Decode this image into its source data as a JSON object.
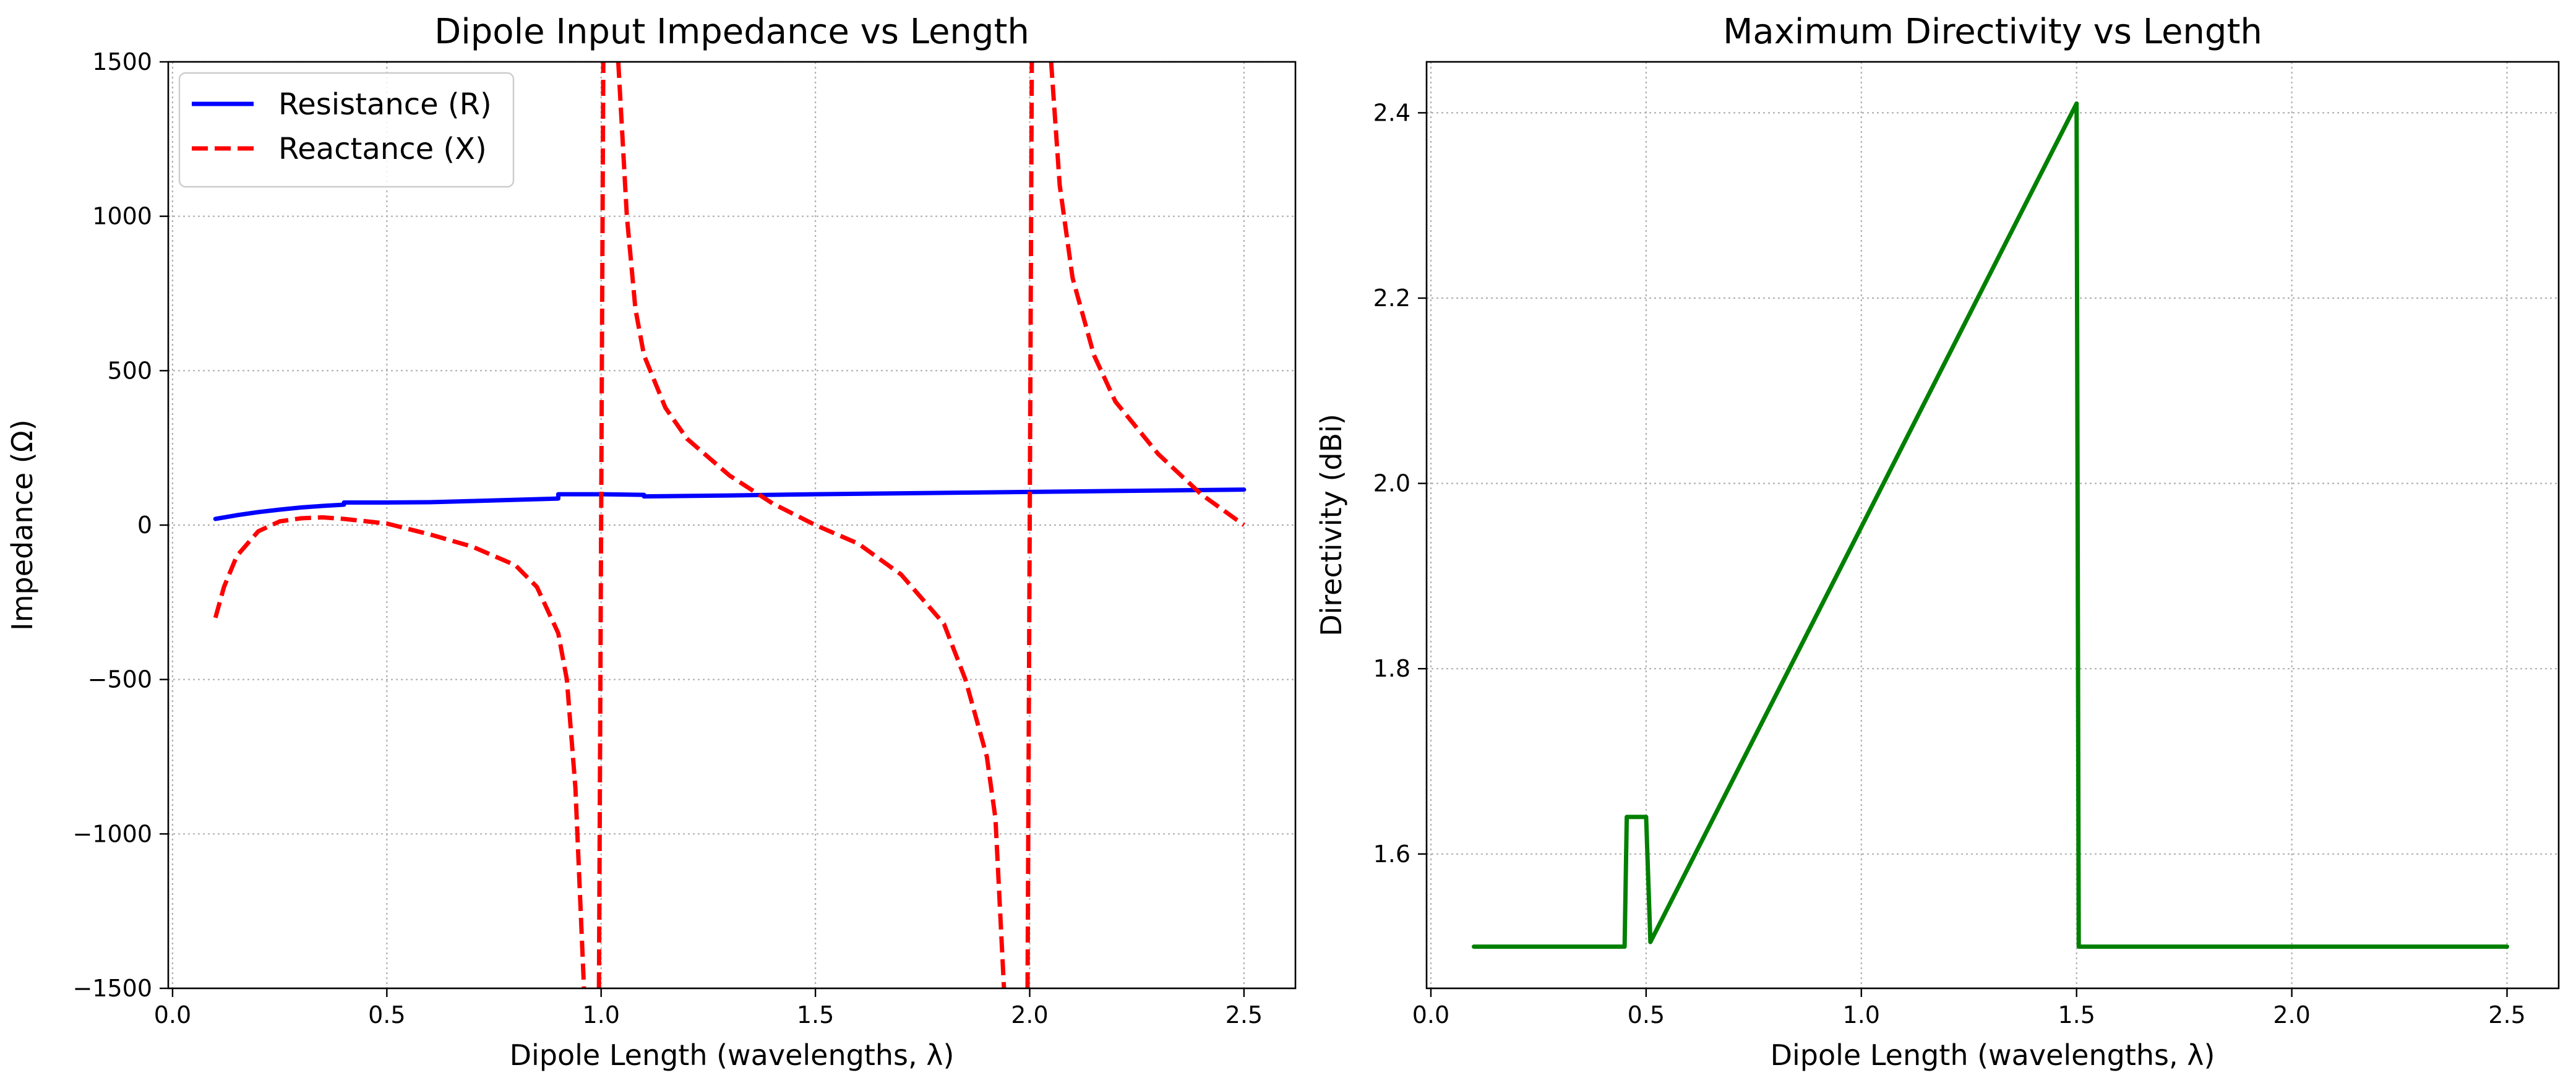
{
  "chart_data": [
    {
      "type": "line",
      "title": "Dipole Input Impedance vs Length",
      "xlabel": "Dipole Length (wavelengths, λ)",
      "ylabel": "Impedance (Ω)",
      "xlim": [
        -0.01,
        2.62
      ],
      "ylim": [
        -1500,
        1500
      ],
      "xticks": [
        0.0,
        0.5,
        1.0,
        1.5,
        2.0,
        2.5
      ],
      "xtick_labels": [
        "0.0",
        "0.5",
        "1.0",
        "1.5",
        "2.0",
        "2.5"
      ],
      "yticks": [
        -1500,
        -1000,
        -500,
        0,
        500,
        1000,
        1500
      ],
      "ytick_labels": [
        "−1500",
        "−1000",
        "−500",
        "0",
        "500",
        "1000",
        "1500"
      ],
      "grid": true,
      "legend": "upper-left",
      "series": [
        {
          "name": "Resistance (R)",
          "color": "#0000ff",
          "style": "solid",
          "segments": [
            [
              [
                0.1,
                20
              ],
              [
                0.15,
                32
              ],
              [
                0.2,
                42
              ],
              [
                0.25,
                50
              ],
              [
                0.3,
                57
              ],
              [
                0.35,
                62
              ],
              [
                0.4,
                66
              ],
              [
                0.4,
                73
              ],
              [
                0.5,
                73
              ],
              [
                0.6,
                74
              ],
              [
                0.7,
                78
              ],
              [
                0.8,
                82
              ],
              [
                0.9,
                86
              ],
              [
                0.9,
                100
              ],
              [
                1.0,
                100
              ],
              [
                1.1,
                98
              ],
              [
                1.1,
                93
              ],
              [
                1.3,
                96
              ],
              [
                1.5,
                100
              ],
              [
                1.7,
                103
              ],
              [
                1.9,
                106
              ],
              [
                2.1,
                109
              ],
              [
                2.3,
                112
              ],
              [
                2.5,
                115
              ]
            ]
          ]
        },
        {
          "name": "Reactance (X)",
          "color": "#ff0000",
          "style": "dashed",
          "segments": [
            [
              [
                0.1,
                -300
              ],
              [
                0.12,
                -200
              ],
              [
                0.15,
                -100
              ],
              [
                0.2,
                -20
              ],
              [
                0.25,
                12
              ],
              [
                0.3,
                22
              ],
              [
                0.35,
                25
              ],
              [
                0.4,
                20
              ],
              [
                0.5,
                5
              ],
              [
                0.6,
                -30
              ],
              [
                0.7,
                -70
              ],
              [
                0.8,
                -130
              ],
              [
                0.85,
                -200
              ],
              [
                0.9,
                -350
              ],
              [
                0.92,
                -500
              ],
              [
                0.94,
                -850
              ],
              [
                0.96,
                -1500
              ]
            ],
            [
              [
                0.995,
                -1500
              ],
              [
                1.0,
                0
              ],
              [
                1.005,
                1500
              ]
            ],
            [
              [
                1.04,
                1500
              ],
              [
                1.06,
                1000
              ],
              [
                1.08,
                700
              ],
              [
                1.1,
                550
              ],
              [
                1.15,
                380
              ],
              [
                1.2,
                280
              ],
              [
                1.3,
                160
              ],
              [
                1.4,
                70
              ],
              [
                1.5,
                0
              ],
              [
                1.6,
                -60
              ],
              [
                1.7,
                -160
              ],
              [
                1.8,
                -320
              ],
              [
                1.85,
                -500
              ],
              [
                1.9,
                -750
              ],
              [
                1.92,
                -950
              ],
              [
                1.94,
                -1500
              ]
            ],
            [
              [
                1.995,
                -1500
              ],
              [
                2.0,
                0
              ],
              [
                2.005,
                1500
              ]
            ],
            [
              [
                2.05,
                1500
              ],
              [
                2.07,
                1100
              ],
              [
                2.1,
                800
              ],
              [
                2.15,
                550
              ],
              [
                2.2,
                400
              ],
              [
                2.3,
                230
              ],
              [
                2.4,
                100
              ],
              [
                2.5,
                0
              ]
            ]
          ]
        }
      ]
    },
    {
      "type": "line",
      "title": "Maximum Directivity vs Length",
      "xlabel": "Dipole Length (wavelengths, λ)",
      "ylabel": "Directivity (dBi)",
      "xlim": [
        -0.01,
        2.62
      ],
      "ylim": [
        1.455,
        2.455
      ],
      "xticks": [
        0.0,
        0.5,
        1.0,
        1.5,
        2.0,
        2.5
      ],
      "xtick_labels": [
        "0.0",
        "0.5",
        "1.0",
        "1.5",
        "2.0",
        "2.5"
      ],
      "yticks": [
        1.6,
        1.8,
        2.0,
        2.2,
        2.4
      ],
      "ytick_labels": [
        "1.6",
        "1.8",
        "2.0",
        "2.2",
        "2.4"
      ],
      "grid": true,
      "series": [
        {
          "color": "#008000",
          "style": "solid",
          "segments": [
            [
              [
                0.1,
                1.5
              ],
              [
                0.45,
                1.5
              ],
              [
                0.455,
                1.64
              ],
              [
                0.5,
                1.64
              ],
              [
                0.51,
                1.505
              ],
              [
                1.5,
                2.41
              ],
              [
                1.505,
                1.5
              ],
              [
                2.5,
                1.5
              ]
            ]
          ]
        }
      ]
    }
  ]
}
